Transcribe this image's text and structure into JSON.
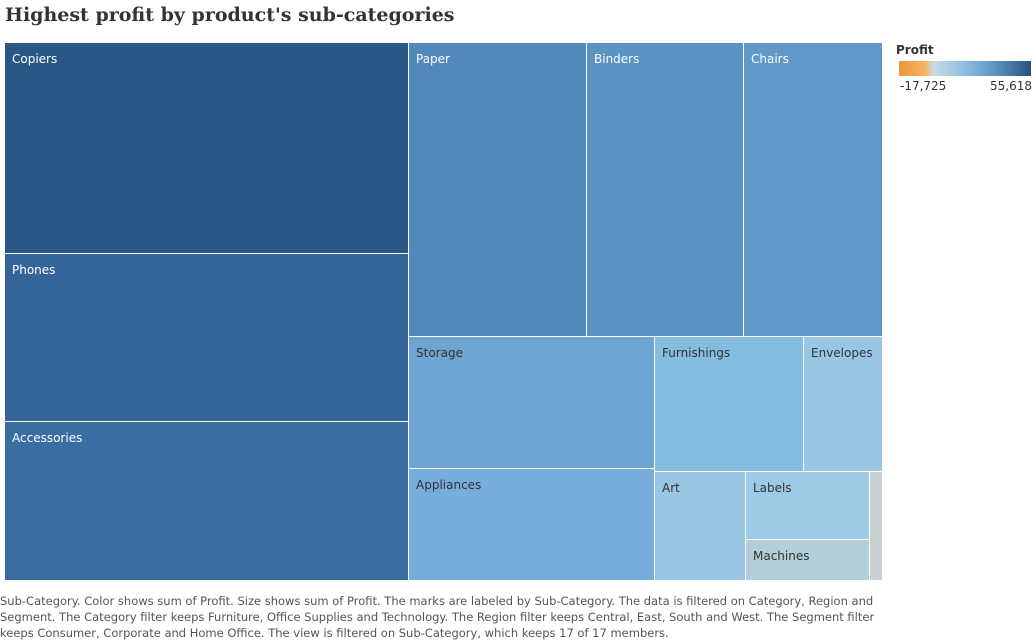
{
  "title": "Highest profit by product's sub-categories",
  "legend": {
    "title": "Profit",
    "min_label": "-17,725",
    "max_label": "55,618",
    "min_color": "#f0963a",
    "max_color": "#28527d"
  },
  "chart_data": {
    "type": "treemap",
    "title": "Highest profit by product's sub-categories",
    "color_measure": "Profit",
    "size_measure": "Profit",
    "color_range": [
      -17725,
      55618
    ],
    "items": [
      {
        "label": "Copiers",
        "color": "#2a5886",
        "text": "#ffffff"
      },
      {
        "label": "Phones",
        "color": "#33649a",
        "text": "#ffffff"
      },
      {
        "label": "Accessories",
        "color": "#3a6ea3",
        "text": "#ffffff"
      },
      {
        "label": "Paper",
        "color": "#5388ba",
        "text": "#ffffff"
      },
      {
        "label": "Binders",
        "color": "#5b93c2",
        "text": "#ffffff"
      },
      {
        "label": "Chairs",
        "color": "#6198c7",
        "text": "#ffffff"
      },
      {
        "label": "Storage",
        "color": "#6da5d0",
        "text": "#333333"
      },
      {
        "label": "Appliances",
        "color": "#76addb",
        "text": "#333333"
      },
      {
        "label": "Furnishings",
        "color": "#85bde0",
        "text": "#333333"
      },
      {
        "label": "Envelopes",
        "color": "#99c6e5",
        "text": "#333333"
      },
      {
        "label": "Art",
        "color": "#99c6e5",
        "text": "#333333"
      },
      {
        "label": "Labels",
        "color": "#9dcae6",
        "text": "#333333"
      },
      {
        "label": "Machines",
        "color": "#b2ced9",
        "text": "#333333"
      },
      {
        "label": "",
        "color": "#c8d0d0",
        "text": "#333333"
      }
    ]
  },
  "caption": "Sub-Category.  Color shows sum of Profit.  Size shows sum of Profit.  The marks are labeled by Sub-Category. The data is filtered on Category, Region and Segment. The Category filter keeps Furniture, Office Supplies and Technology. The Region filter keeps Central, East, South and West. The Segment filter keeps Consumer, Corporate and Home Office. The view is filtered on Sub-Category, which keeps 17 of 17 members."
}
